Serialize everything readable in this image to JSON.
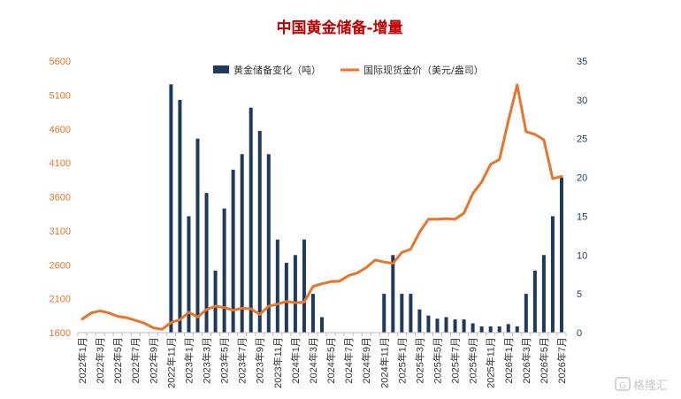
{
  "chart_data": {
    "type": "bar",
    "title": "中国黄金储备-增量",
    "categories": [
      "2022年1月",
      "2022年2月",
      "2022年3月",
      "2022年4月",
      "2022年5月",
      "2022年6月",
      "2022年7月",
      "2022年8月",
      "2022年9月",
      "2022年10月",
      "2022年11月",
      "2022年12月",
      "2023年1月",
      "2023年2月",
      "2023年3月",
      "2023年4月",
      "2023年5月",
      "2023年6月",
      "2023年7月",
      "2023年8月",
      "2023年9月",
      "2023年10月",
      "2023年11月",
      "2023年12月",
      "2024年1月",
      "2024年2月",
      "2024年3月",
      "2024年4月",
      "2024年5月",
      "2024年6月",
      "2024年7月",
      "2024年8月",
      "2024年9月",
      "2024年10月",
      "2024年11月",
      "2024年12月",
      "2025年1月",
      "2025年2月",
      "2025年3月",
      "2025年4月",
      "2025年5月",
      "2025年6月",
      "2025年7月",
      "2025年8月",
      "2025年9月",
      "2025年10月",
      "2025年11月",
      "2025年12月",
      "2026年1月",
      "2026年2月",
      "2026年3月",
      "2026年4月",
      "2026年5月",
      "2026年6月",
      "2026年7月"
    ],
    "x_tick_labels": [
      "2022年1月",
      "2022年3月",
      "2022年5月",
      "2022年7月",
      "2022年9月",
      "2022年11月",
      "2023年1月",
      "2023年3月",
      "2023年5月",
      "2023年7月",
      "2023年9月",
      "2023年11月",
      "2024年1月",
      "2024年3月",
      "2024年5月",
      "2024年7月",
      "2024年9月",
      "2024年11月",
      "2025年1月",
      "2025年3月",
      "2025年5月",
      "2025年7月",
      "2025年9月",
      "2025年11月",
      "2026年1月",
      "2026年3月",
      "2026年5月",
      "2026年7月"
    ],
    "series": [
      {
        "name": "黄金储备变化（吨）",
        "type": "bar",
        "axis": "right",
        "color": "#1f3a5c",
        "values": [
          0,
          0,
          0,
          0,
          0,
          0,
          0,
          0,
          0,
          0,
          32,
          30,
          15,
          25,
          18,
          8,
          16,
          21,
          23,
          29,
          26,
          23,
          12,
          9,
          10,
          12,
          5,
          2,
          0,
          0,
          0,
          0,
          0,
          0,
          5,
          10,
          5,
          5,
          3,
          2.2,
          1.8,
          2,
          1.7,
          1.7,
          1.2,
          0.8,
          0.8,
          0.8,
          1.1,
          0.8,
          5,
          8,
          10,
          15,
          20
        ]
      },
      {
        "name": "国际现货金价（美元/盎司）",
        "type": "line",
        "axis": "left",
        "color": "#e8752a",
        "values": [
          1800,
          1890,
          1920,
          1890,
          1840,
          1820,
          1780,
          1740,
          1670,
          1650,
          1750,
          1790,
          1900,
          1830,
          1940,
          1990,
          1970,
          1930,
          1960,
          1950,
          1870,
          1990,
          2020,
          2060,
          2040,
          2050,
          2280,
          2320,
          2350,
          2360,
          2440,
          2480,
          2560,
          2670,
          2640,
          2620,
          2780,
          2830,
          3080,
          3270,
          3270,
          3280,
          3270,
          3360,
          3650,
          3820,
          4080,
          4150,
          4720,
          5250,
          4560,
          4520,
          4440,
          3870,
          3900
        ]
      }
    ],
    "left_axis": {
      "ylim": [
        1600,
        5600
      ],
      "ticks": [
        "1600",
        "2100",
        "2600",
        "3100",
        "3600",
        "4100",
        "4600",
        "5100",
        "5600"
      ],
      "tick_values": [
        1600,
        2100,
        2600,
        3100,
        3600,
        4100,
        4600,
        5100,
        5600
      ],
      "color": "#e8752a"
    },
    "right_axis": {
      "ylim": [
        0,
        35
      ],
      "ticks": [
        "0",
        "5",
        "10",
        "15",
        "20",
        "25",
        "30",
        "35"
      ],
      "tick_values": [
        0,
        5,
        10,
        15,
        20,
        25,
        30,
        35
      ],
      "color": "#1f3a5c"
    },
    "grid": false,
    "legend_position": "top-center"
  },
  "watermark": {
    "text": "格隆汇",
    "icon": "brand-logo-icon"
  }
}
